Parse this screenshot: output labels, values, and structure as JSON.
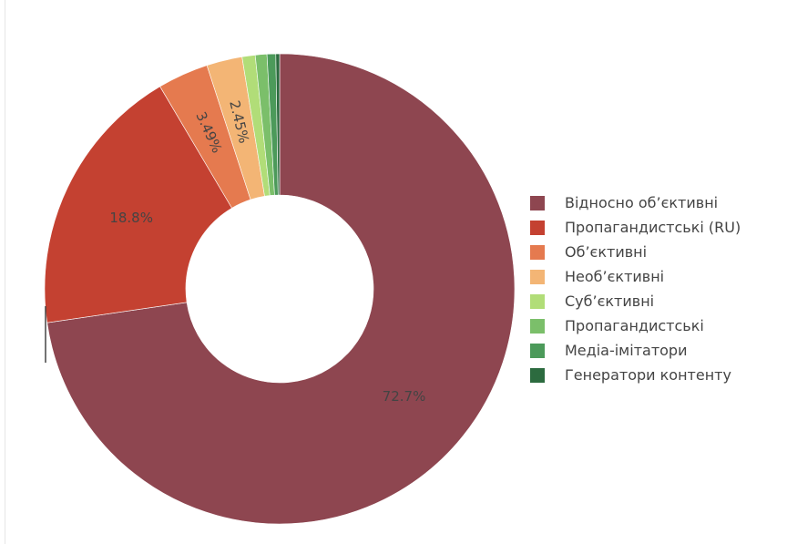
{
  "chart_data": {
    "type": "pie",
    "hole": true,
    "legend_position": "right",
    "slices": [
      {
        "label": "Відносно об’єктивні",
        "value": 72.7,
        "display": "72.7%",
        "color": "#8e4650"
      },
      {
        "label": "Пропагандистські (RU)",
        "value": 18.8,
        "display": "18.8%",
        "color": "#c44131"
      },
      {
        "label": "Об’єктивні",
        "value": 3.49,
        "display": "3.49%",
        "color": "#e57a4f"
      },
      {
        "label": "Необ’єктивні",
        "value": 2.45,
        "display": "2.45%",
        "color": "#f3b575"
      },
      {
        "label": "Суб’єктивні",
        "value": 0.9,
        "display": "",
        "color": "#b1dd78"
      },
      {
        "label": "Пропагандистські",
        "value": 0.8,
        "display": "",
        "color": "#7bbf6a"
      },
      {
        "label": "Медіа-імітатори",
        "value": 0.6,
        "display": "",
        "color": "#4c9a5a"
      },
      {
        "label": "Генератори контенту",
        "value": 0.26,
        "display": "",
        "color": "#2c6b3f"
      }
    ]
  }
}
